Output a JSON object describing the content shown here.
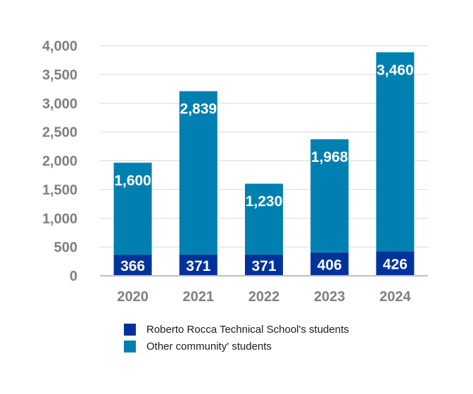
{
  "chart_data": {
    "type": "bar",
    "stacked": true,
    "categories": [
      "2020",
      "2021",
      "2022",
      "2023",
      "2024"
    ],
    "series": [
      {
        "name": "Roberto Rocca Technical School's students",
        "values": [
          366,
          371,
          371,
          406,
          426
        ],
        "color": "#003399"
      },
      {
        "name": "Other community' students",
        "values": [
          1600,
          2839,
          1230,
          1968,
          3460
        ],
        "color": "#0080b0"
      }
    ],
    "ylim": [
      0,
      4000
    ],
    "yticks": [
      "0",
      "500",
      "1,000",
      "1,500",
      "2,000",
      "2,500",
      "3,000",
      "3,500",
      "4,000"
    ],
    "data_labels": {
      "series_0": [
        "366",
        "371",
        "371",
        "406",
        "426"
      ],
      "series_1": [
        "1,600",
        "2,839",
        "1,230",
        "1,968",
        "3,460"
      ]
    },
    "grid": true,
    "legend_position": "bottom"
  }
}
